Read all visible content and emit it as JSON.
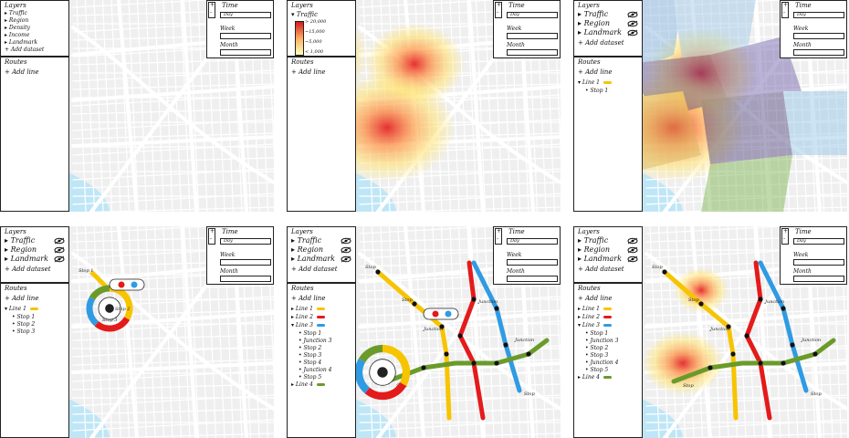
{
  "panels": [
    {
      "layers_title": "Layers",
      "layers": [
        "Traffic",
        "Region",
        "Density",
        "Income",
        "Landmark"
      ],
      "add_dataset": "+ Add dataset",
      "routes_title": "Routes",
      "add_line": "+ Add line",
      "routes": []
    },
    {
      "layers_title": "Layers",
      "layer_expanded": "Traffic",
      "legend_ticks": [
        "> 20,000",
        "~15,000",
        "~5,000",
        "< 1,000"
      ],
      "routes_title": "Routes",
      "add_line": "+ Add line",
      "routes": []
    },
    {
      "layers_title": "Layers",
      "layers": [
        "Traffic",
        "Region",
        "Landmark"
      ],
      "add_dataset": "+ Add dataset",
      "routes_title": "Routes",
      "add_line": "+ Add line",
      "routes": [
        {
          "label": "Line 1",
          "stops": [
            "Stop 1"
          ]
        }
      ]
    },
    {
      "layers_title": "Layers",
      "layers": [
        "Traffic",
        "Region",
        "Landmark"
      ],
      "add_dataset": "+ Add dataset",
      "routes_title": "Routes",
      "add_line": "+ Add line",
      "routes": [
        {
          "label": "Line 1",
          "stops": [
            "Stop 1",
            "Stop 2",
            "Stop 3"
          ]
        }
      ]
    },
    {
      "layers_title": "Layers",
      "layers": [
        "Traffic",
        "Region",
        "Landmark"
      ],
      "add_dataset": "+ Add dataset",
      "routes_title": "Routes",
      "add_line": "+ Add line",
      "routes": [
        {
          "label": "Line 1",
          "stops": []
        },
        {
          "label": "Line 2",
          "stops": []
        },
        {
          "label": "Line 3",
          "stops": [
            "Stop 1",
            "Junction 3",
            "Stop 2",
            "Stop 3",
            "Stop 4",
            "Junction 4",
            "Stop 5"
          ]
        },
        {
          "label": "Line 4",
          "stops": []
        }
      ]
    },
    {
      "layers_title": "Layers",
      "layers": [
        "Traffic",
        "Region",
        "Landmark"
      ],
      "add_dataset": "+ Add dataset",
      "routes_title": "Routes",
      "add_line": "+ Add line",
      "routes": [
        {
          "label": "Line 1",
          "stops": []
        },
        {
          "label": "Line 2",
          "stops": []
        },
        {
          "label": "Line 3",
          "stops": [
            "Stop 1",
            "Junction 3",
            "Stop 2",
            "Stop 3",
            "Junction 4",
            "Stop 5"
          ]
        },
        {
          "label": "Line 4",
          "stops": []
        }
      ]
    }
  ],
  "time": {
    "title": "Time",
    "mode": "Day",
    "week_label": "Week",
    "month_label": "Month"
  },
  "map_labels": {
    "stop": "Stop",
    "junction": "Junction",
    "stops_panel4": [
      "Stop 1",
      "Stop 2",
      "Stop 3"
    ]
  },
  "colors": {
    "line1": "#f7c400",
    "line2": "#e41b1b",
    "line3": "#2f9be3",
    "line4": "#6a9b2a",
    "heat_high": "#e31a1c",
    "heat_mid": "#fd8d3c",
    "heat_low": "#ffe36e",
    "water": "#bfe6f6",
    "road": "#ffffff",
    "land": "#efefef"
  },
  "icons": [
    "eye-icon",
    "plus-icon",
    "minus-icon",
    "triangle-right-icon",
    "triangle-down-icon",
    "bullet-icon"
  ]
}
